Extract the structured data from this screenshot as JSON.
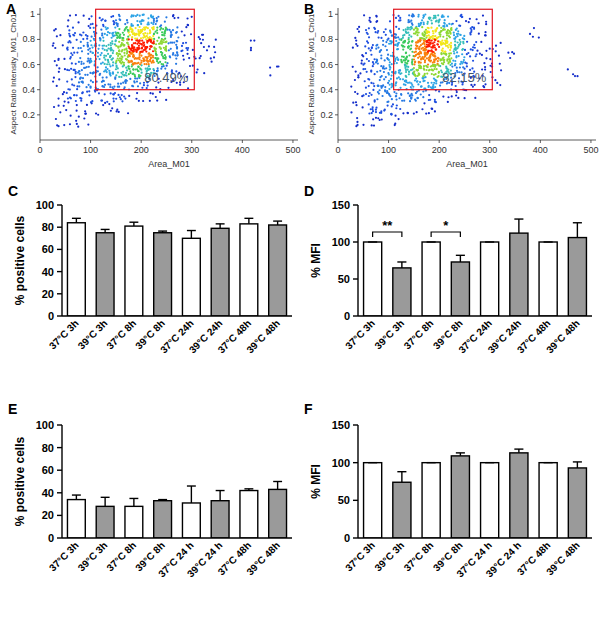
{
  "chart_data": [
    {
      "type": "heatmap",
      "title": "A",
      "x_label": "Area_M01",
      "y_label": "Aspect Ratio Intensity_M01_Ch01",
      "xlim": [
        0,
        510
      ],
      "ylim": [
        0,
        1.05
      ],
      "xticks": [
        0,
        100,
        200,
        300,
        400,
        500
      ],
      "yticks": [
        0.2,
        0.4,
        0.6,
        0.8,
        1
      ],
      "x_bins": [
        0,
        25,
        50,
        75,
        100,
        125,
        150,
        175,
        200,
        225,
        250,
        275,
        300,
        325,
        350,
        375,
        400,
        425,
        450,
        475,
        500
      ],
      "y_bins": [
        0,
        0.1,
        0.2,
        0.3,
        0.4,
        0.5,
        0.6,
        0.7,
        0.8,
        0.9,
        1
      ],
      "color_range": [
        0,
        10
      ],
      "cells": [
        [
          0,
          0,
          0,
          0,
          0,
          0,
          0,
          0,
          0,
          0,
          0,
          0,
          0,
          0,
          0,
          0,
          0,
          0,
          0,
          0
        ],
        [
          0,
          1,
          1,
          1,
          0,
          0,
          0,
          0,
          0,
          0,
          0,
          0,
          0,
          0,
          0,
          0,
          0,
          0,
          0,
          0
        ],
        [
          0,
          1,
          1,
          1,
          1,
          1,
          1,
          0,
          0,
          0,
          0,
          0,
          0,
          0,
          0,
          0,
          0,
          0,
          0,
          0
        ],
        [
          0,
          1,
          2,
          2,
          2,
          2,
          2,
          1,
          1,
          1,
          0,
          0,
          0,
          0,
          0,
          0,
          0,
          0,
          0,
          0
        ],
        [
          0,
          1,
          2,
          3,
          3,
          3,
          3,
          3,
          2,
          1,
          1,
          1,
          0,
          0,
          0,
          0,
          0,
          0,
          0,
          0
        ],
        [
          0,
          1,
          2,
          3,
          3,
          4,
          5,
          6,
          5,
          3,
          2,
          1,
          1,
          0,
          0,
          0,
          0,
          0,
          1,
          0
        ],
        [
          0,
          1,
          2,
          3,
          4,
          5,
          7,
          9,
          9,
          6,
          3,
          1,
          1,
          1,
          0,
          0,
          0,
          0,
          0,
          0
        ],
        [
          0,
          1,
          2,
          3,
          4,
          5,
          7,
          10,
          10,
          7,
          3,
          2,
          1,
          1,
          0,
          0,
          1,
          0,
          0,
          0
        ],
        [
          0,
          1,
          2,
          2,
          3,
          4,
          6,
          8,
          8,
          6,
          3,
          1,
          1,
          0,
          0,
          0,
          0,
          0,
          0,
          0
        ],
        [
          0,
          0,
          1,
          1,
          2,
          2,
          3,
          4,
          4,
          3,
          1,
          1,
          0,
          0,
          0,
          0,
          0,
          0,
          0,
          0
        ]
      ],
      "gate": {
        "xlim": [
          110,
          305
        ],
        "ylim": [
          0.4,
          1.04
        ],
        "value": 80.49,
        "label": "80.49%"
      }
    },
    {
      "type": "heatmap",
      "title": "B",
      "x_label": "Area_M01",
      "y_label": "Aspect Ratio Intensity_M01_Ch01",
      "xlim": [
        0,
        510
      ],
      "ylim": [
        0,
        1.05
      ],
      "xticks": [
        0,
        100,
        200,
        300,
        400,
        500
      ],
      "yticks": [
        0.2,
        0.4,
        0.6,
        0.8,
        1
      ],
      "x_bins": [
        0,
        25,
        50,
        75,
        100,
        125,
        150,
        175,
        200,
        225,
        250,
        275,
        300,
        325,
        350,
        375,
        400,
        425,
        450,
        475,
        500
      ],
      "y_bins": [
        0,
        0.1,
        0.2,
        0.3,
        0.4,
        0.5,
        0.6,
        0.7,
        0.8,
        0.9,
        1
      ],
      "color_range": [
        0,
        10
      ],
      "cells": [
        [
          0,
          0,
          0,
          0,
          0,
          0,
          0,
          0,
          0,
          0,
          0,
          0,
          0,
          0,
          0,
          0,
          0,
          0,
          0,
          0
        ],
        [
          0,
          1,
          1,
          1,
          1,
          0,
          0,
          0,
          0,
          0,
          0,
          0,
          0,
          0,
          0,
          0,
          0,
          0,
          0,
          0
        ],
        [
          0,
          1,
          2,
          2,
          2,
          1,
          1,
          1,
          0,
          0,
          0,
          0,
          0,
          0,
          0,
          0,
          0,
          0,
          0,
          0
        ],
        [
          0,
          1,
          2,
          3,
          3,
          3,
          3,
          2,
          1,
          1,
          1,
          0,
          0,
          0,
          0,
          0,
          0,
          0,
          0,
          0
        ],
        [
          0,
          1,
          2,
          3,
          4,
          4,
          4,
          4,
          3,
          2,
          1,
          1,
          1,
          0,
          0,
          0,
          0,
          0,
          0,
          0
        ],
        [
          0,
          1,
          2,
          3,
          4,
          5,
          7,
          7,
          5,
          3,
          2,
          1,
          1,
          0,
          0,
          0,
          0,
          0,
          1,
          0
        ],
        [
          0,
          1,
          2,
          3,
          4,
          6,
          9,
          9,
          7,
          4,
          2,
          1,
          1,
          1,
          0,
          0,
          0,
          0,
          0,
          0
        ],
        [
          0,
          1,
          2,
          3,
          4,
          6,
          9,
          10,
          8,
          5,
          2,
          1,
          1,
          0,
          0,
          0,
          0,
          0,
          0,
          0
        ],
        [
          0,
          1,
          2,
          2,
          3,
          5,
          7,
          8,
          7,
          4,
          2,
          1,
          0,
          0,
          0,
          1,
          0,
          0,
          0,
          0
        ],
        [
          0,
          0,
          1,
          1,
          2,
          3,
          4,
          5,
          4,
          2,
          1,
          1,
          0,
          0,
          0,
          0,
          0,
          0,
          0,
          0
        ]
      ],
      "gate": {
        "xlim": [
          110,
          305
        ],
        "ylim": [
          0.4,
          1.04
        ],
        "value": 82.15,
        "label": "82,15%"
      }
    },
    {
      "type": "bar",
      "title": "C",
      "y_label": "% positive cells",
      "categories": [
        "37°C 3h",
        "39°C 3h",
        "37°C 8h",
        "39°C 8h",
        "37°C 24h",
        "39°C 24h",
        "37°C 48h",
        "39°C 48h"
      ],
      "values": [
        84,
        75,
        81,
        75,
        70,
        79,
        83,
        82
      ],
      "errors": [
        4,
        3,
        3.5,
        1.5,
        7,
        4,
        5,
        3.5
      ],
      "colors": [
        "#ffffff",
        "#9a9a9a",
        "#ffffff",
        "#9a9a9a",
        "#ffffff",
        "#9a9a9a",
        "#ffffff",
        "#9a9a9a"
      ],
      "ylim": [
        0,
        100
      ],
      "yticks": [
        0,
        20,
        40,
        60,
        80,
        100
      ]
    },
    {
      "type": "bar",
      "title": "D",
      "y_label": "% MFI",
      "categories": [
        "37°C 3h",
        "39°C 3h",
        "37°C 8h",
        "39°C 8h",
        "37°C 24h",
        "39°C 24h",
        "37°C 48h",
        "39°C 48h"
      ],
      "values": [
        100,
        65,
        100,
        73,
        100,
        112,
        100,
        106
      ],
      "errors": [
        0,
        8,
        0,
        9,
        0,
        19,
        0,
        20
      ],
      "colors": [
        "#ffffff",
        "#9a9a9a",
        "#ffffff",
        "#9a9a9a",
        "#ffffff",
        "#9a9a9a",
        "#ffffff",
        "#9a9a9a"
      ],
      "ylim": [
        0,
        150
      ],
      "yticks": [
        0,
        50,
        100,
        150
      ],
      "annotations": [
        {
          "text": "**",
          "between": [
            0,
            1
          ]
        },
        {
          "text": "*",
          "between": [
            2,
            3
          ]
        }
      ]
    },
    {
      "type": "bar",
      "title": "E",
      "y_label": "% positive cells",
      "categories": [
        "37°C 3h",
        "39°C 3h",
        "37°C 8h",
        "39°C 8h",
        "37°C 24 h",
        "39°C 24 h",
        "37°C 48h",
        "39°C 48h"
      ],
      "values": [
        34,
        28,
        28,
        33,
        31,
        33,
        42,
        43
      ],
      "errors": [
        4,
        8,
        7,
        1,
        15,
        9,
        1.5,
        7
      ],
      "colors": [
        "#ffffff",
        "#9a9a9a",
        "#ffffff",
        "#9a9a9a",
        "#ffffff",
        "#9a9a9a",
        "#ffffff",
        "#9a9a9a"
      ],
      "ylim": [
        0,
        100
      ],
      "yticks": [
        0,
        20,
        40,
        60,
        80,
        100
      ]
    },
    {
      "type": "bar",
      "title": "F",
      "y_label": "% MFI",
      "categories": [
        "37°C 3h",
        "39°C 3h",
        "37°C 8h",
        "39°C 8h",
        "37°C 24 h",
        "39°C 24 h",
        "37°C 48h",
        "39°C 48h"
      ],
      "values": [
        100,
        74,
        100,
        109,
        100,
        113,
        100,
        93
      ],
      "errors": [
        0,
        14,
        0,
        4,
        0,
        5,
        0,
        8
      ],
      "colors": [
        "#ffffff",
        "#9a9a9a",
        "#ffffff",
        "#9a9a9a",
        "#ffffff",
        "#9a9a9a",
        "#ffffff",
        "#9a9a9a"
      ],
      "ylim": [
        0,
        150
      ],
      "yticks": [
        0,
        50,
        100,
        150
      ]
    }
  ]
}
